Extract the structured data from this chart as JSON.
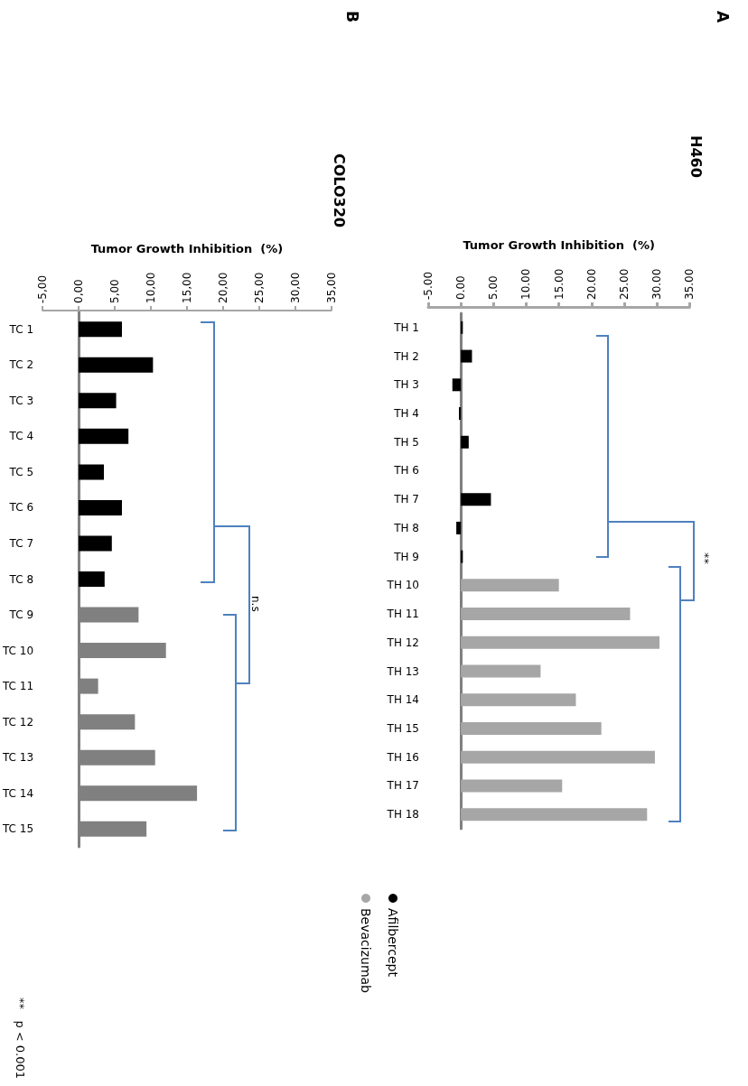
{
  "chart_data": [
    {
      "type": "bar",
      "orientation": "horizontal",
      "title": "H460",
      "xlabel": "Tumor Growth Inhibition  (%)",
      "categories": [
        "TH 1",
        "TH 2",
        "TH 3",
        "TH 4",
        "TH 5",
        "TH 6",
        "TH 7",
        "TH 8",
        "TH 9",
        "TH 10",
        "TH 11",
        "TH 12",
        "TH 13",
        "TH 14",
        "TH 15",
        "TH 16",
        "TH 17",
        "TH 18"
      ],
      "series": [
        {
          "name": "Afilbercept",
          "color": "#000000",
          "values": [
            0.3,
            1.7,
            -1.3,
            -0.3,
            1.2,
            0,
            4.6,
            -0.7,
            0.3,
            null,
            null,
            null,
            null,
            null,
            null,
            null,
            null,
            null
          ]
        },
        {
          "name": "Bevacizumab",
          "color": "#a6a6a6",
          "values": [
            null,
            null,
            null,
            null,
            null,
            null,
            null,
            null,
            null,
            15.0,
            25.9,
            30.4,
            12.2,
            17.6,
            21.5,
            29.7,
            15.5,
            28.5
          ]
        }
      ],
      "xlim": [
        -5,
        35
      ],
      "xticks": [
        {
          "value": -5,
          "label": "-5.00"
        },
        {
          "value": 0,
          "label": "0.00"
        },
        {
          "value": 5,
          "label": "5.00"
        },
        {
          "value": 10,
          "label": "10.00"
        },
        {
          "value": 15,
          "label": "15.00"
        },
        {
          "value": 20,
          "label": "20.00"
        },
        {
          "value": 25,
          "label": "25.00"
        },
        {
          "value": 30,
          "label": "30.00"
        },
        {
          "value": 35,
          "label": "35.00"
        }
      ],
      "legend": "bottom",
      "annotations": [
        "A",
        "**"
      ]
    },
    {
      "type": "bar",
      "orientation": "horizontal",
      "title": "COLO320",
      "xlabel": "Tumor Growth Inhibition  (%)",
      "categories": [
        "TC 1",
        "TC 2",
        "TC 3",
        "TC 4",
        "TC 5",
        "TC 6",
        "TC 7",
        "TC 8",
        "TC 9",
        "TC 10",
        "TC 11",
        "TC 12",
        "TC 13",
        "TC 14",
        "TC 15"
      ],
      "series": [
        {
          "color": "#000000",
          "values": [
            6.0,
            10.3,
            5.2,
            6.9,
            3.5,
            6.0,
            4.6,
            3.6,
            null,
            null,
            null,
            null,
            null,
            null,
            null
          ]
        },
        {
          "color": "#808080",
          "values": [
            null,
            null,
            null,
            null,
            null,
            null,
            null,
            null,
            8.3,
            12.1,
            2.7,
            7.8,
            10.6,
            16.4,
            9.4
          ]
        }
      ],
      "xlim": [
        -5,
        35
      ],
      "xticks": [
        {
          "value": -5,
          "label": "-5,00"
        },
        {
          "value": 0,
          "label": "0,00"
        },
        {
          "value": 5,
          "label": "5,00"
        },
        {
          "value": 10,
          "label": "10,00"
        },
        {
          "value": 15,
          "label": "15,00"
        },
        {
          "value": 20,
          "label": "20,00"
        },
        {
          "value": 25,
          "label": "25,00"
        },
        {
          "value": 30,
          "label": "30,00"
        },
        {
          "value": 35,
          "label": "35,00"
        }
      ],
      "annotations": [
        "B",
        "n.s",
        "**   p < 0.001"
      ]
    }
  ]
}
